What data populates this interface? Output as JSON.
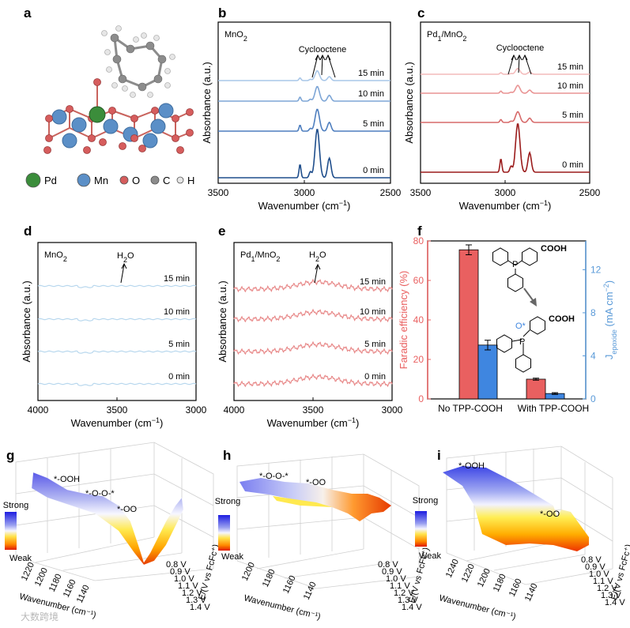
{
  "chart_data": [
    {
      "type": "diagram",
      "panel": "a",
      "legend": [
        {
          "label": "Pd",
          "color": "#3b8d3b"
        },
        {
          "label": "Mn",
          "color": "#5b8fc7"
        },
        {
          "label": "O",
          "color": "#d65d5d"
        },
        {
          "label": "C",
          "color": "#8c8c8c"
        },
        {
          "label": "H",
          "color": "#e6e6e6"
        }
      ]
    },
    {
      "type": "line",
      "panel": "b",
      "title": "MnO<sub>2</sub>",
      "title_text": "MnO",
      "title_sub": "2",
      "xlabel": "Wavenumber (cm",
      "xlabel_sup": "−1",
      "xlabel_end": ")",
      "ylabel": "Absorbance (a.u.)",
      "xlim": [
        3500,
        2500
      ],
      "xticks": [
        3500,
        3000,
        2500
      ],
      "annotation": "Cyclooctene",
      "series": [
        {
          "name": "0 min",
          "color": "#1f4e8c",
          "scale": 1.0
        },
        {
          "name": "5 min",
          "color": "#4f7fbf",
          "scale": 0.45
        },
        {
          "name": "10 min",
          "color": "#7ea6d6",
          "scale": 0.3
        },
        {
          "name": "15 min",
          "color": "#a9c7e8",
          "scale": 0.2
        }
      ]
    },
    {
      "type": "line",
      "panel": "c",
      "title_text": "Pd",
      "title_sub": "1",
      "title_end": "/MnO",
      "title_sub2": "2",
      "xlabel": "Wavenumber (cm",
      "xlabel_sup": "−1",
      "xlabel_end": ")",
      "ylabel": "Absorbance (a.u.)",
      "xlim": [
        3500,
        2500
      ],
      "xticks": [
        3500,
        3000,
        2500
      ],
      "annotation": "Cyclooctene",
      "series": [
        {
          "name": "0 min",
          "color": "#9b1c1c",
          "scale": 1.0
        },
        {
          "name": "5 min",
          "color": "#d76a6a",
          "scale": 0.22
        },
        {
          "name": "10 min",
          "color": "#e99494",
          "scale": 0.16
        },
        {
          "name": "15 min",
          "color": "#f3bcbc",
          "scale": 0.12
        }
      ]
    },
    {
      "type": "line",
      "panel": "d",
      "title_text": "MnO",
      "title_sub": "2",
      "xlabel": "Wavenumber (cm",
      "xlabel_sup": "−1",
      "xlabel_end": ")",
      "ylabel": "Absorbance (a.u.)",
      "xlim": [
        4000,
        3000
      ],
      "xticks": [
        4000,
        3500,
        3000
      ],
      "annotation_text": "H",
      "annotation_sub": "2",
      "annotation_end": "O",
      "series": [
        {
          "name": "0 min",
          "color": "#b9d8ee"
        },
        {
          "name": "5 min",
          "color": "#b9d8ee"
        },
        {
          "name": "10 min",
          "color": "#b9d8ee"
        },
        {
          "name": "15 min",
          "color": "#b9d8ee"
        }
      ]
    },
    {
      "type": "line",
      "panel": "e",
      "title_text": "Pd",
      "title_sub": "1",
      "title_end": "/MnO",
      "title_sub2": "2",
      "xlabel": "Wavenumber (cm",
      "xlabel_sup": "−1",
      "xlabel_end": ")",
      "ylabel": "Absorbance (a.u.)",
      "xlim": [
        4000,
        3000
      ],
      "xticks": [
        4000,
        3500,
        3000
      ],
      "annotation_text": "H",
      "annotation_sub": "2",
      "annotation_end": "O",
      "series": [
        {
          "name": "0 min",
          "color": "#e88a8a"
        },
        {
          "name": "5 min",
          "color": "#e88a8a"
        },
        {
          "name": "10 min",
          "color": "#e88a8a"
        },
        {
          "name": "15 min",
          "color": "#e88a8a"
        }
      ]
    },
    {
      "type": "bar",
      "panel": "f",
      "categories": [
        "No TPP-COOH",
        "With TPP-COOH"
      ],
      "series": [
        {
          "name": "Faradic efficiency (%)",
          "axis": "left",
          "color": "#e96060",
          "values": [
            75.5,
            10
          ],
          "errors": [
            2.5,
            0.5
          ]
        },
        {
          "name": "J_epoxide (mA cm−2)",
          "axis": "right",
          "color": "#3f86e0",
          "values": [
            5.0,
            0.5
          ],
          "errors": [
            0.45,
            0.08
          ]
        }
      ],
      "ylabel_left": "Faradic efficiency (%)",
      "ylabel_right": "J",
      "ylabel_right_sub": "epoxide",
      "ylabel_right_end": " (mA cm",
      "ylabel_right_sup": "−2",
      "ylabel_right_close": ")",
      "ylim_left": [
        0,
        80
      ],
      "yticks_left": [
        0,
        20,
        40,
        60,
        80
      ],
      "ylim_right": [
        0,
        14.67
      ],
      "yticks_right": [
        0,
        4,
        8,
        12
      ],
      "inset_labels": [
        "P",
        "COOH",
        "P",
        "COOH",
        "O*"
      ]
    },
    {
      "type": "surface",
      "panel": "g",
      "zlabel_top": "Strong",
      "zlabel_bottom": "Weak",
      "xlabel": "Wavenumber (cm⁻¹)",
      "ylabel": "E/(V vs FcFc⁺)",
      "xticks": [
        "1220",
        "1200",
        "1180",
        "1160",
        "1140"
      ],
      "yticks": [
        "0.8 V",
        "0.9 V",
        "1.0 V",
        "1.1 V",
        "1.2 V",
        "1.3 V",
        "1.4 V"
      ],
      "annotations": [
        "*-OOH",
        "*-O-O-*",
        "*-OO"
      ]
    },
    {
      "type": "surface",
      "panel": "h",
      "zlabel_top": "Strong",
      "zlabel_bottom": "Weak",
      "xlabel": "Wavenumber (cm⁻¹)",
      "ylabel": "E/(V vs FcFc⁺)",
      "xticks": [
        "1200",
        "1180",
        "1160",
        "1140"
      ],
      "yticks": [
        "0.8 V",
        "0.9 V",
        "1.0 V",
        "1.1 V",
        "1.2 V",
        "1.3 V",
        "1.4 V"
      ],
      "annotations": [
        "*-O-O-*",
        "*-OO"
      ]
    },
    {
      "type": "surface",
      "panel": "i",
      "zlabel_top": "Strong",
      "zlabel_bottom": "Weak",
      "xlabel": "Wavenumber (cm⁻¹)",
      "ylabel": "E/(V vs FcFc⁺)",
      "xticks": [
        "1240",
        "1220",
        "1200",
        "1180",
        "1160",
        "1140"
      ],
      "yticks": [
        "0.8 V",
        "0.9 V",
        "1.0 V",
        "1.1 V",
        "1.2 V",
        "1.3 V",
        "1.4 V"
      ],
      "annotations": [
        "*-OOH",
        "*-OO"
      ]
    }
  ],
  "panel_letters": [
    "a",
    "b",
    "c",
    "d",
    "e",
    "f",
    "g",
    "h",
    "i"
  ],
  "watermark": "大数跨境"
}
